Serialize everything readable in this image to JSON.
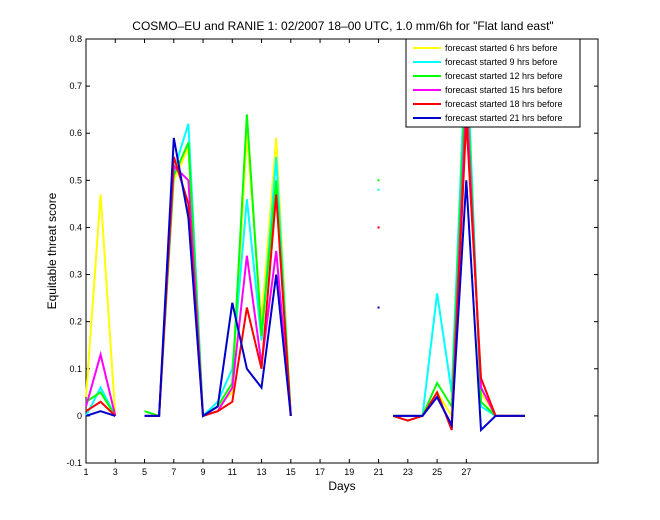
{
  "chart_data": {
    "type": "line",
    "title": "COSMO–EU and RANIE 1: 02/2007 18–00 UTC, 1.0 mm/6h for \"Flat land east\"",
    "xlabel": "Days",
    "ylabel": "Equitable threat score",
    "xlim": [
      1,
      36
    ],
    "ylim": [
      -0.1,
      0.8
    ],
    "xticks": [
      1,
      3,
      5,
      7,
      9,
      11,
      13,
      15,
      17,
      19,
      21,
      23,
      25,
      27
    ],
    "yticks": [
      -0.1,
      0,
      0.1,
      0.2,
      0.3,
      0.4,
      0.5,
      0.6,
      0.7,
      0.8
    ],
    "grid": false,
    "legend_position": "top-right",
    "series": [
      {
        "name": "forecast started 6 hrs before",
        "color": "#ffff00",
        "x": [
          1,
          2,
          3,
          null,
          5,
          6,
          7,
          8,
          9,
          10,
          11,
          12,
          13,
          14,
          15,
          null,
          21,
          null,
          22,
          23,
          24,
          25,
          26,
          27,
          28,
          29,
          30,
          31
        ],
        "y": [
          0.04,
          0.47,
          0.0,
          null,
          0.0,
          0.0,
          0.5,
          0.57,
          0.0,
          0.02,
          0.05,
          0.6,
          0.2,
          0.59,
          0.0,
          null,
          0.48,
          null,
          0.0,
          0.0,
          0.0,
          0.05,
          0.0,
          0.72,
          0.05,
          0.0,
          0.0,
          0.0
        ]
      },
      {
        "name": "forecast started 9 hrs before",
        "color": "#00ffff",
        "x": [
          1,
          2,
          3,
          null,
          5,
          6,
          7,
          8,
          9,
          10,
          11,
          12,
          13,
          14,
          15,
          null,
          21,
          null,
          22,
          23,
          24,
          25,
          26,
          27,
          28,
          29,
          30,
          31
        ],
        "y": [
          0.0,
          0.06,
          0.0,
          null,
          0.0,
          0.0,
          0.52,
          0.62,
          0.0,
          0.03,
          0.1,
          0.46,
          0.16,
          0.55,
          0.0,
          null,
          0.48,
          null,
          0.0,
          -0.01,
          0.0,
          0.26,
          0.05,
          0.8,
          0.02,
          0.0,
          0.0,
          0.0
        ]
      },
      {
        "name": "forecast started 12 hrs before",
        "color": "#00ff00",
        "x": [
          1,
          2,
          3,
          null,
          5,
          6,
          7,
          8,
          9,
          10,
          11,
          12,
          13,
          14,
          15,
          null,
          21,
          null,
          22,
          23,
          24,
          25,
          26,
          27,
          28,
          29,
          30,
          31
        ],
        "y": [
          0.03,
          0.05,
          0.0,
          null,
          0.01,
          0.0,
          0.51,
          0.58,
          0.0,
          0.02,
          0.07,
          0.64,
          0.17,
          0.5,
          0.0,
          null,
          0.5,
          null,
          0.0,
          0.0,
          0.0,
          0.07,
          0.02,
          0.75,
          0.03,
          0.0,
          0.0,
          0.0
        ]
      },
      {
        "name": "forecast started 15 hrs before",
        "color": "#ff00ff",
        "x": [
          1,
          2,
          3,
          null,
          5,
          6,
          7,
          8,
          9,
          10,
          11,
          12,
          13,
          14,
          15,
          null,
          21,
          null,
          22,
          23,
          24,
          25,
          26,
          27,
          28,
          29,
          30,
          31
        ],
        "y": [
          0.02,
          0.13,
          0.0,
          null,
          0.0,
          0.0,
          0.53,
          0.5,
          0.0,
          0.01,
          0.06,
          0.34,
          0.11,
          0.35,
          0.0,
          null,
          0.4,
          null,
          0.0,
          0.0,
          0.0,
          0.04,
          -0.02,
          0.68,
          0.06,
          0.0,
          0.0,
          0.0
        ]
      },
      {
        "name": "forecast started 18 hrs before",
        "color": "#ff0000",
        "x": [
          1,
          2,
          3,
          null,
          5,
          6,
          7,
          8,
          9,
          10,
          11,
          12,
          13,
          14,
          15,
          null,
          21,
          null,
          22,
          23,
          24,
          25,
          26,
          27,
          28,
          29,
          30,
          31
        ],
        "y": [
          0.01,
          0.03,
          0.0,
          null,
          0.0,
          0.0,
          0.55,
          0.45,
          0.0,
          0.01,
          0.03,
          0.23,
          0.1,
          0.47,
          0.0,
          null,
          0.4,
          null,
          0.0,
          -0.01,
          0.0,
          0.05,
          -0.03,
          0.63,
          0.08,
          0.0,
          0.0,
          0.0
        ]
      },
      {
        "name": "forecast started 21 hrs before",
        "color": "#0000cc",
        "x": [
          1,
          2,
          3,
          null,
          5,
          6,
          7,
          8,
          9,
          10,
          11,
          12,
          13,
          14,
          15,
          null,
          21,
          null,
          22,
          23,
          24,
          25,
          26,
          27,
          28,
          29,
          30,
          31
        ],
        "y": [
          0.0,
          0.01,
          0.0,
          null,
          0.0,
          0.0,
          0.59,
          0.42,
          0.0,
          0.02,
          0.24,
          0.1,
          0.06,
          0.3,
          0.0,
          null,
          0.23,
          null,
          0.0,
          0.0,
          0.0,
          0.04,
          -0.02,
          0.5,
          -0.03,
          0.0,
          0.0,
          0.0
        ]
      }
    ]
  }
}
